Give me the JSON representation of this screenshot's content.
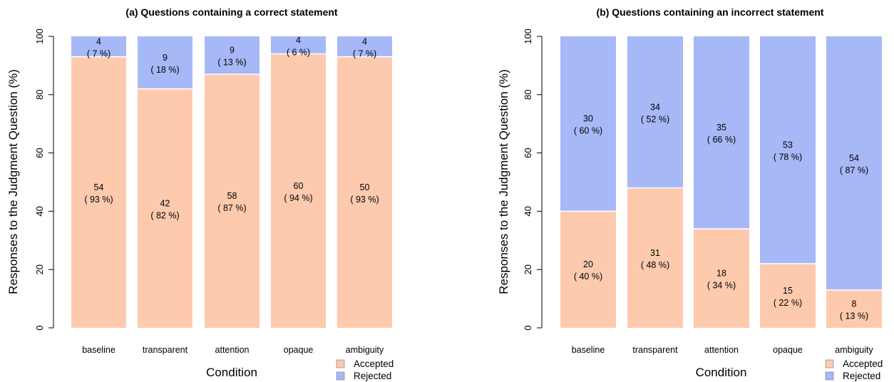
{
  "chart_data": [
    {
      "type": "bar",
      "stacked": true,
      "title": "(a) Questions containing a correct statement",
      "xlabel": "Condition",
      "ylabel": "Responses to the Judgment Question (%)",
      "ylim": [
        0,
        100
      ],
      "yticks": [
        "0",
        "20",
        "40",
        "60",
        "80",
        "100"
      ],
      "categories": [
        "baseline",
        "transparent",
        "attention",
        "opaque",
        "ambiguity"
      ],
      "series": [
        {
          "name": "Accepted",
          "color": "#fdcaae",
          "values": [
            93,
            82,
            87,
            94,
            93
          ],
          "counts": [
            "54",
            "42",
            "58",
            "60",
            "50"
          ],
          "percent_labels": [
            "( 93 %)",
            "( 82 %)",
            "( 87 %)",
            "( 94 %)",
            "( 93 %)"
          ]
        },
        {
          "name": "Rejected",
          "color": "#a7b8f7",
          "values": [
            7,
            18,
            13,
            6,
            7
          ],
          "counts": [
            "4",
            "9",
            "9",
            "4",
            "4"
          ],
          "percent_labels": [
            "( 7 %)",
            "( 18 %)",
            "( 13 %)",
            "( 6 %)",
            "( 7 %)"
          ]
        }
      ],
      "legend": {
        "position": "bottom-right",
        "entries": [
          "Accepted",
          "Rejected"
        ]
      },
      "grid": false
    },
    {
      "type": "bar",
      "stacked": true,
      "title": "(b) Questions containing an incorrect statement",
      "xlabel": "Condition",
      "ylabel": "Responses to the Judgment Question (%)",
      "ylim": [
        0,
        100
      ],
      "yticks": [
        "0",
        "20",
        "40",
        "60",
        "80",
        "100"
      ],
      "categories": [
        "baseline",
        "transparent",
        "attention",
        "opaque",
        "ambiguity"
      ],
      "series": [
        {
          "name": "Accepted",
          "color": "#fdcaae",
          "values": [
            40,
            48,
            34,
            22,
            13
          ],
          "counts": [
            "20",
            "31",
            "18",
            "15",
            "8"
          ],
          "percent_labels": [
            "( 40 %)",
            "( 48 %)",
            "( 34 %)",
            "( 22 %)",
            "( 13 %)"
          ]
        },
        {
          "name": "Rejected",
          "color": "#a7b8f7",
          "values": [
            60,
            52,
            66,
            78,
            87
          ],
          "counts": [
            "30",
            "34",
            "35",
            "53",
            "54"
          ],
          "percent_labels": [
            "( 60 %)",
            "( 52 %)",
            "( 66 %)",
            "( 78 %)",
            "( 87 %)"
          ]
        }
      ],
      "legend": {
        "position": "bottom-right",
        "entries": [
          "Accepted",
          "Rejected"
        ]
      },
      "grid": false
    }
  ]
}
